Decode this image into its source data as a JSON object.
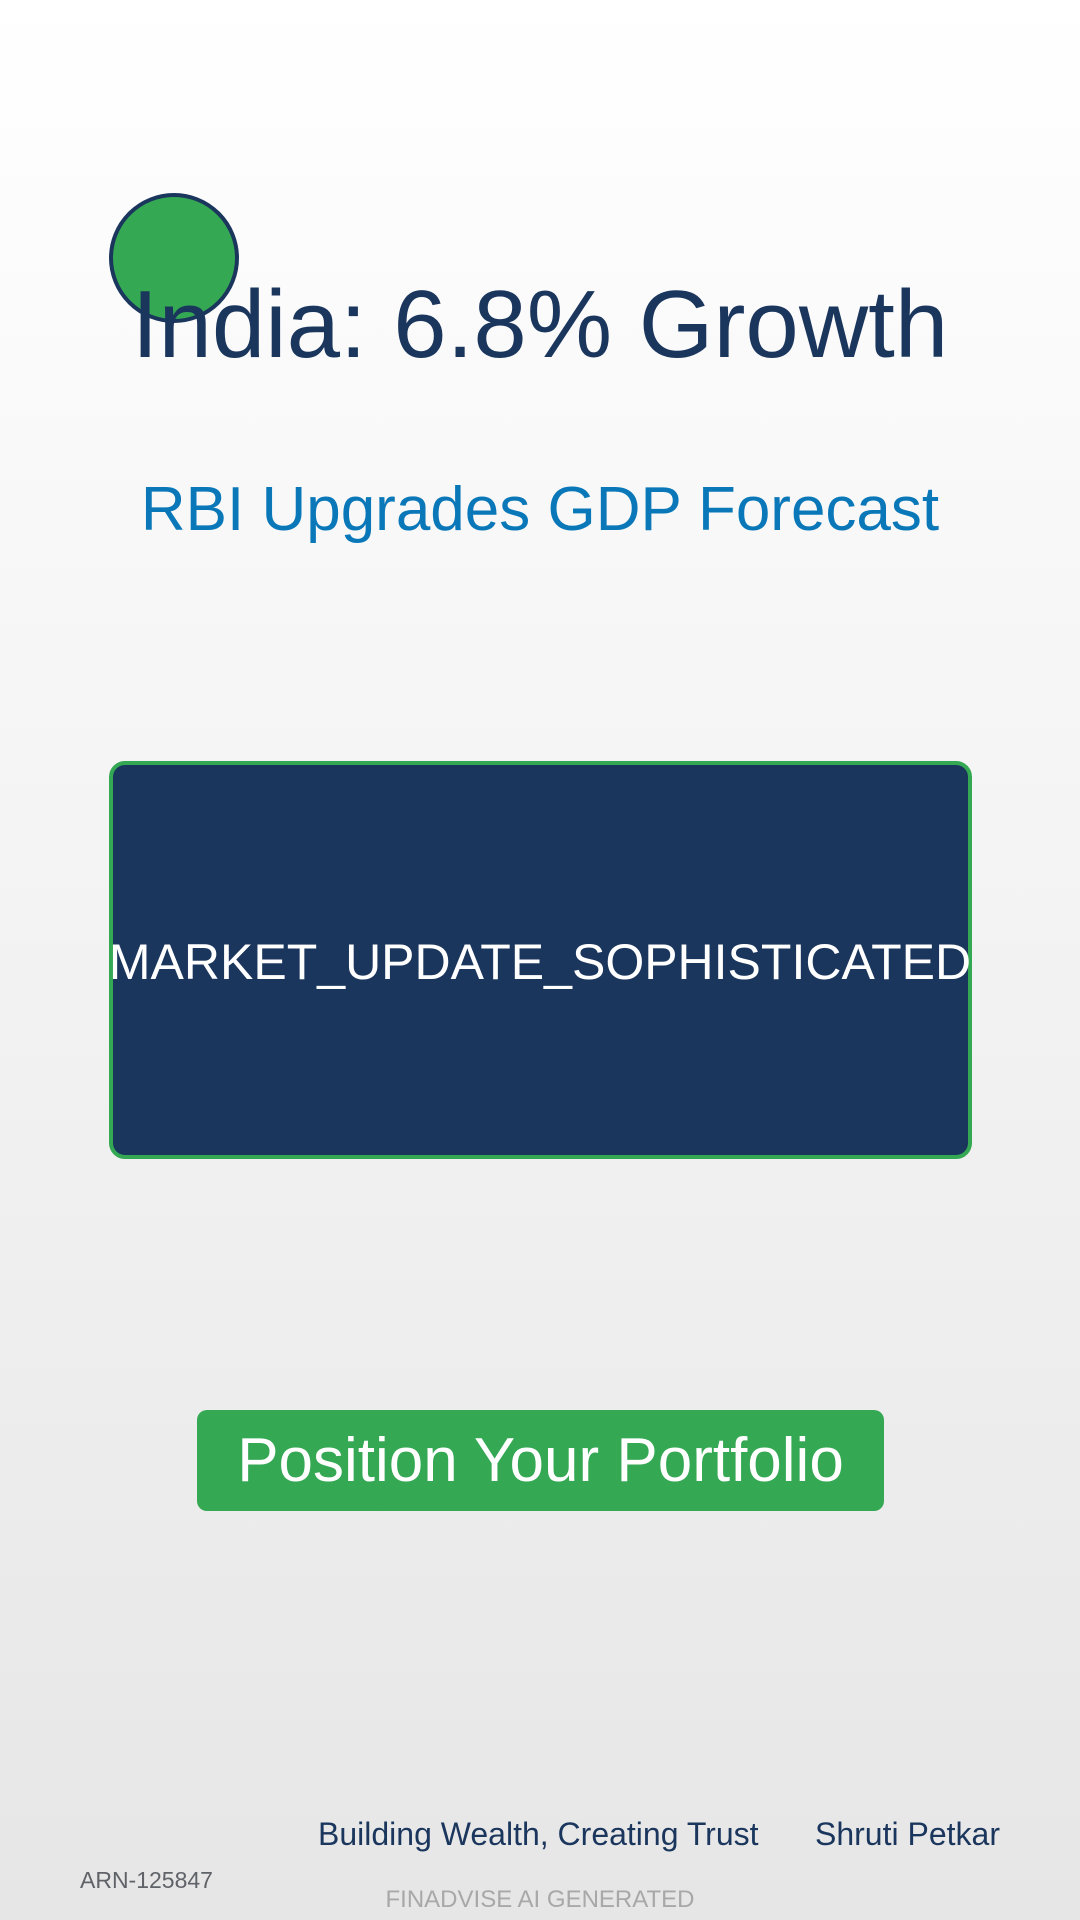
{
  "header": {
    "logo_icon": "green-circle-logo",
    "title": "India: 6.8% Growth",
    "subtitle": "RBI Upgrades GDP Forecast"
  },
  "visual": {
    "placeholder_label": "MARKET_UPDATE_SOPHISTICATED"
  },
  "cta": {
    "label": "Position Your Portfolio"
  },
  "footer": {
    "tagline": "Building Wealth, Creating Trust",
    "advisor_name": "Shruti Petkar",
    "arn": "ARN-125847",
    "watermark": "FINADVISE AI GENERATED"
  },
  "colors": {
    "navy": "#1b365d",
    "accent_green": "#34a853",
    "subtitle_blue": "#0a78b8",
    "watermark_gray": "#a8a8a8"
  }
}
